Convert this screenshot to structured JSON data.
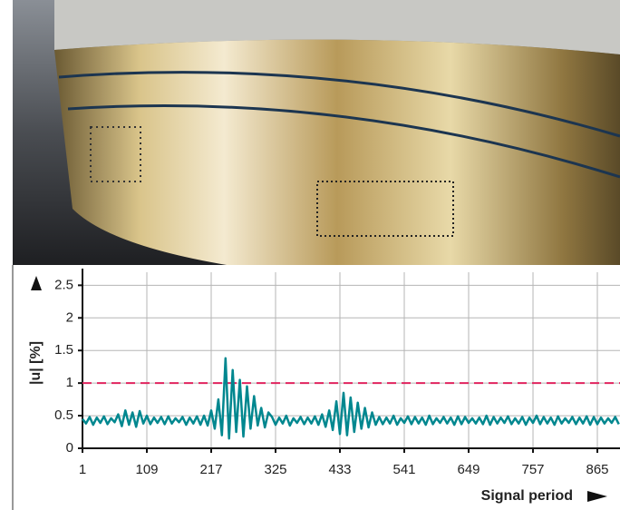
{
  "chart_data": {
    "type": "line",
    "x_label": "Signal period",
    "y_label": "|u| [%]",
    "xlim": [
      1,
      903
    ],
    "xticks": [
      1,
      109,
      217,
      325,
      433,
      541,
      649,
      757,
      865
    ],
    "ylim": [
      0,
      2.7
    ],
    "yticks": [
      0,
      0.5,
      1,
      1.5,
      2,
      2.5
    ],
    "grid": true,
    "reference_line": {
      "value": 1,
      "color": "#e0245e"
    },
    "x": [
      1,
      7,
      13,
      19,
      25,
      31,
      37,
      43,
      49,
      55,
      61,
      67,
      73,
      79,
      85,
      91,
      97,
      103,
      109,
      115,
      121,
      127,
      133,
      139,
      145,
      151,
      157,
      163,
      169,
      175,
      181,
      187,
      193,
      199,
      205,
      211,
      217,
      223,
      229,
      235,
      241,
      247,
      253,
      259,
      265,
      271,
      277,
      283,
      289,
      295,
      301,
      307,
      313,
      319,
      325,
      331,
      337,
      343,
      349,
      355,
      361,
      367,
      373,
      379,
      385,
      391,
      397,
      403,
      409,
      415,
      421,
      427,
      433,
      439,
      445,
      451,
      457,
      463,
      469,
      475,
      481,
      487,
      493,
      499,
      505,
      511,
      517,
      523,
      529,
      535,
      541,
      547,
      553,
      559,
      565,
      571,
      577,
      583,
      589,
      595,
      601,
      607,
      613,
      619,
      625,
      631,
      637,
      643,
      649,
      655,
      661,
      667,
      673,
      679,
      685,
      691,
      697,
      703,
      709,
      715,
      721,
      727,
      733,
      739,
      745,
      751,
      757,
      763,
      769,
      775,
      781,
      787,
      793,
      799,
      805,
      811,
      817,
      823,
      829,
      835,
      841,
      847,
      853,
      859,
      865,
      871,
      877,
      883,
      889,
      895,
      901
    ],
    "series": [
      {
        "color": "#00878f",
        "values": [
          0.45,
          0.38,
          0.48,
          0.36,
          0.47,
          0.39,
          0.49,
          0.37,
          0.46,
          0.4,
          0.52,
          0.34,
          0.58,
          0.36,
          0.55,
          0.33,
          0.57,
          0.38,
          0.5,
          0.37,
          0.47,
          0.39,
          0.48,
          0.37,
          0.49,
          0.38,
          0.46,
          0.4,
          0.48,
          0.36,
          0.47,
          0.38,
          0.49,
          0.36,
          0.5,
          0.35,
          0.58,
          0.3,
          0.75,
          0.2,
          1.38,
          0.15,
          1.2,
          0.25,
          1.05,
          0.18,
          0.95,
          0.3,
          0.8,
          0.35,
          0.62,
          0.32,
          0.55,
          0.48,
          0.36,
          0.47,
          0.38,
          0.5,
          0.35,
          0.46,
          0.39,
          0.48,
          0.37,
          0.47,
          0.38,
          0.49,
          0.36,
          0.52,
          0.33,
          0.58,
          0.28,
          0.72,
          0.22,
          0.85,
          0.2,
          0.78,
          0.25,
          0.7,
          0.3,
          0.62,
          0.32,
          0.55,
          0.36,
          0.48,
          0.37,
          0.47,
          0.38,
          0.5,
          0.36,
          0.46,
          0.39,
          0.49,
          0.37,
          0.48,
          0.38,
          0.47,
          0.36,
          0.5,
          0.37,
          0.46,
          0.39,
          0.48,
          0.38,
          0.47,
          0.36,
          0.49,
          0.37,
          0.48,
          0.39,
          0.46,
          0.38,
          0.47,
          0.37,
          0.5,
          0.36,
          0.48,
          0.38,
          0.47,
          0.39,
          0.49,
          0.37,
          0.46,
          0.38,
          0.48,
          0.36,
          0.47,
          0.39,
          0.5,
          0.37,
          0.48,
          0.38,
          0.47,
          0.36,
          0.49,
          0.38,
          0.46,
          0.39,
          0.48,
          0.37,
          0.47,
          0.38,
          0.49,
          0.36,
          0.48,
          0.37,
          0.47,
          0.38,
          0.46,
          0.39,
          0.48,
          0.37
        ]
      }
    ]
  }
}
